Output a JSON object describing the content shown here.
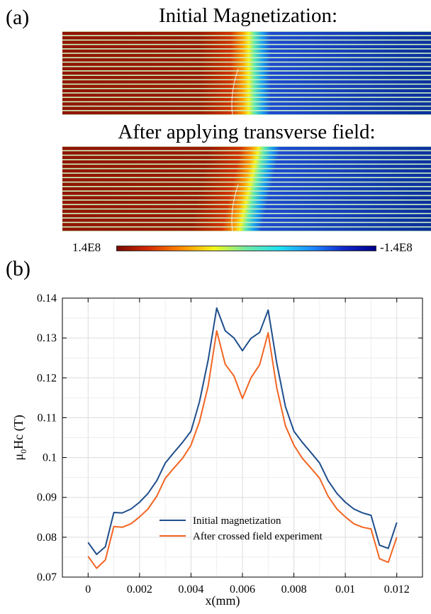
{
  "panel_labels": {
    "a": "(a)",
    "b": "(b)"
  },
  "simulation": {
    "title_initial": "Initial Magnetization:",
    "title_after": "After applying transverse field:",
    "colorbar_min_label": "1.4E8",
    "colorbar_max_label": "-1.4E8",
    "colors": {
      "positive": "#8f1400",
      "negative": "#0a2d96",
      "stripe": "#c9f2c2"
    }
  },
  "chart_data": {
    "type": "line",
    "xlabel": "x(mm)",
    "ylabel_parts": {
      "main": "μ",
      "sub": "0",
      "rest": "Hc (T)"
    },
    "xlim": [
      -0.001,
      0.013
    ],
    "ylim": [
      0.07,
      0.14
    ],
    "x_ticks": [
      0,
      0.002,
      0.004,
      0.006,
      0.008,
      0.01,
      0.012
    ],
    "x_tick_labels": [
      "0",
      "0.002",
      "0.004",
      "0.006",
      "0.008",
      "0.01",
      "0.012"
    ],
    "y_ticks": [
      0.07,
      0.08,
      0.09,
      0.1,
      0.11,
      0.12,
      0.13,
      0.14
    ],
    "y_tick_labels": [
      "0.07",
      "0.08",
      "0.09",
      "0.1",
      "0.11",
      "0.12",
      "0.13",
      "0.14"
    ],
    "grid": true,
    "legend_position": "bottom-center",
    "x": [
      0,
      0.00033,
      0.00067,
      0.001,
      0.00133,
      0.00167,
      0.002,
      0.00233,
      0.00267,
      0.003,
      0.00333,
      0.00367,
      0.004,
      0.00433,
      0.00467,
      0.005,
      0.00533,
      0.00567,
      0.006,
      0.00633,
      0.00667,
      0.007,
      0.00733,
      0.00767,
      0.008,
      0.00833,
      0.00867,
      0.009,
      0.00933,
      0.00967,
      0.01,
      0.01033,
      0.01067,
      0.011,
      0.01133,
      0.01167,
      0.012
    ],
    "series": [
      {
        "name": "Initial magnetization",
        "color": "#1f4e8c",
        "values": [
          0.0787,
          0.0757,
          0.0776,
          0.0862,
          0.0861,
          0.0871,
          0.0888,
          0.091,
          0.0942,
          0.0986,
          0.1012,
          0.1038,
          0.1066,
          0.114,
          0.1245,
          0.1375,
          0.1318,
          0.13,
          0.1268,
          0.1299,
          0.1314,
          0.137,
          0.1238,
          0.1128,
          0.1066,
          0.1038,
          0.1012,
          0.0986,
          0.0942,
          0.091,
          0.0888,
          0.0871,
          0.0861,
          0.0855,
          0.078,
          0.0772,
          0.0837
        ]
      },
      {
        "name": "After crossed field experiment",
        "color": "#f26522",
        "values": [
          0.0752,
          0.0722,
          0.0743,
          0.0827,
          0.0825,
          0.0834,
          0.0851,
          0.0871,
          0.0903,
          0.0948,
          0.0973,
          0.0998,
          0.1031,
          0.109,
          0.118,
          0.1318,
          0.1234,
          0.1205,
          0.1148,
          0.12,
          0.1233,
          0.1313,
          0.1176,
          0.108,
          0.1031,
          0.0998,
          0.0973,
          0.0948,
          0.0903,
          0.0871,
          0.0851,
          0.0834,
          0.0825,
          0.0821,
          0.0746,
          0.0737,
          0.08
        ]
      }
    ]
  }
}
